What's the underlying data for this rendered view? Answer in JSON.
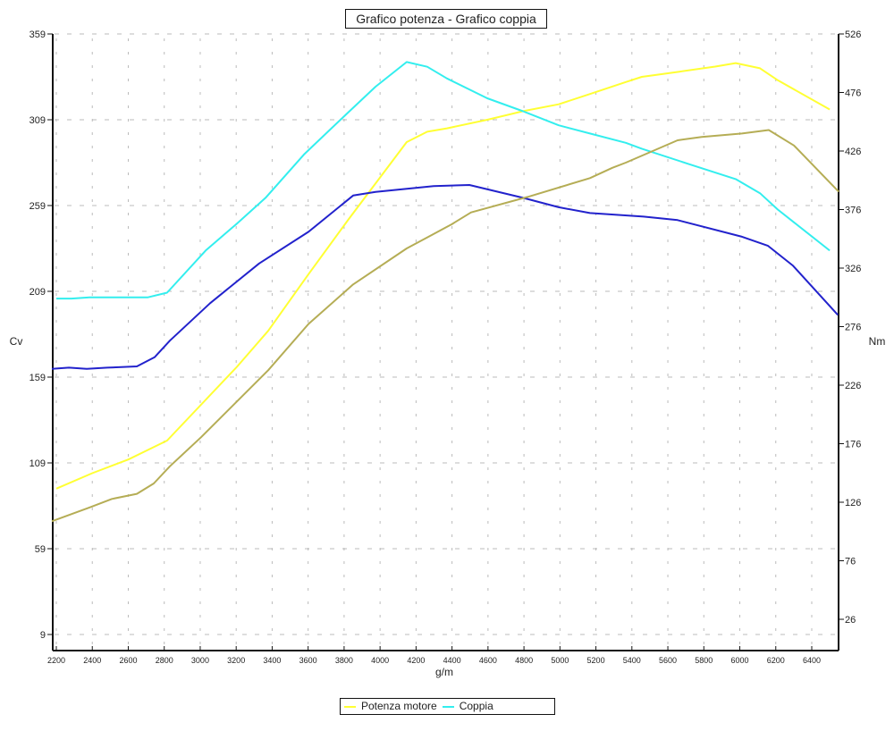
{
  "title": "Grafico potenza - Grafico coppia",
  "legend": {
    "items": [
      {
        "label": "Potenza motore",
        "color": "#ffff33"
      },
      {
        "label": "Coppia",
        "color": "#33eeee"
      }
    ]
  },
  "axes": {
    "x_label": "g/m",
    "y_left_label": "Cv",
    "y_right_label": "Nm"
  },
  "chart_data": {
    "type": "line",
    "title": "Grafico potenza - Grafico coppia",
    "xlabel": "g/m",
    "ylabel": "Cv",
    "ylabel_right": "Nm",
    "x_ticks": [
      2200,
      2400,
      2600,
      2800,
      3000,
      3200,
      3400,
      3600,
      3800,
      4000,
      4200,
      4400,
      4600,
      4800,
      5000,
      5200,
      5400,
      5600,
      5800,
      6000,
      6200,
      6400
    ],
    "y_left_ticks": [
      9,
      59,
      109,
      159,
      209,
      259,
      309,
      359
    ],
    "y_right_ticks": [
      26,
      76,
      126,
      176,
      226,
      276,
      326,
      376,
      426,
      476,
      526
    ],
    "xlim": [
      2180,
      6550
    ],
    "ylim_left": [
      -0.5,
      359
    ],
    "ylim_right": [
      13.5,
      526
    ],
    "grid": true,
    "legend_position": "bottom",
    "series": [
      {
        "name": "Potenza motore",
        "axis": "left",
        "color": "#ffff33",
        "x": [
          2200,
          2400,
          2600,
          2816,
          3204,
          3378,
          3602,
          3825,
          4148,
          4262,
          4372,
          4596,
          4795,
          4993,
          5167,
          5366,
          5455,
          5664,
          5863,
          5977,
          6112,
          6211,
          6500
        ],
        "values": [
          94,
          103,
          111,
          122,
          165,
          186,
          219,
          251,
          296,
          302,
          304,
          309,
          314,
          318,
          324,
          331,
          334,
          337,
          340,
          342,
          339,
          332,
          315
        ]
      },
      {
        "name": "Coppia",
        "axis": "right",
        "color": "#33eeee",
        "x": [
          2200,
          2285,
          2384,
          2409,
          2707,
          2816,
          3030,
          3204,
          3363,
          3577,
          3816,
          3975,
          4148,
          4262,
          4372,
          4596,
          4795,
          4993,
          5167,
          5366,
          5455,
          5714,
          5977,
          6112,
          6211,
          6500
        ],
        "values": [
          300,
          300,
          301,
          301,
          301,
          305,
          341,
          364,
          386,
          423,
          458,
          481,
          502,
          498,
          488,
          471,
          460,
          448,
          441,
          433,
          428,
          415,
          402,
          390,
          376,
          341
        ]
      },
      {
        "name": "",
        "axis": "right",
        "color": "#2222cc",
        "x": [
          2175,
          2270,
          2369,
          2484,
          2648,
          2747,
          2831,
          3055,
          3328,
          3602,
          3850,
          3975,
          4099,
          4298,
          4497,
          4795,
          4993,
          5167,
          5465,
          5654,
          6007,
          6157,
          6296,
          6545
        ],
        "values": [
          240,
          241,
          240,
          241,
          242,
          250,
          264,
          296,
          330,
          357,
          388,
          391,
          393,
          396,
          397,
          386,
          378,
          373,
          370,
          367,
          353,
          345,
          328,
          286
        ]
      },
      {
        "name": "",
        "axis": "left",
        "color": "#b5ad55",
        "x": [
          2175,
          2384,
          2509,
          2648,
          2742,
          2831,
          3005,
          3378,
          3602,
          3850,
          4148,
          4272,
          4397,
          4506,
          4820,
          5167,
          5291,
          5366,
          5654,
          5788,
          6012,
          6161,
          6301,
          6550
        ],
        "values": [
          75,
          83,
          88,
          91,
          97,
          107,
          124,
          163,
          190,
          213,
          234,
          241,
          248,
          255,
          264,
          275,
          281,
          284,
          297,
          299,
          301,
          303,
          294,
          267
        ]
      }
    ]
  }
}
